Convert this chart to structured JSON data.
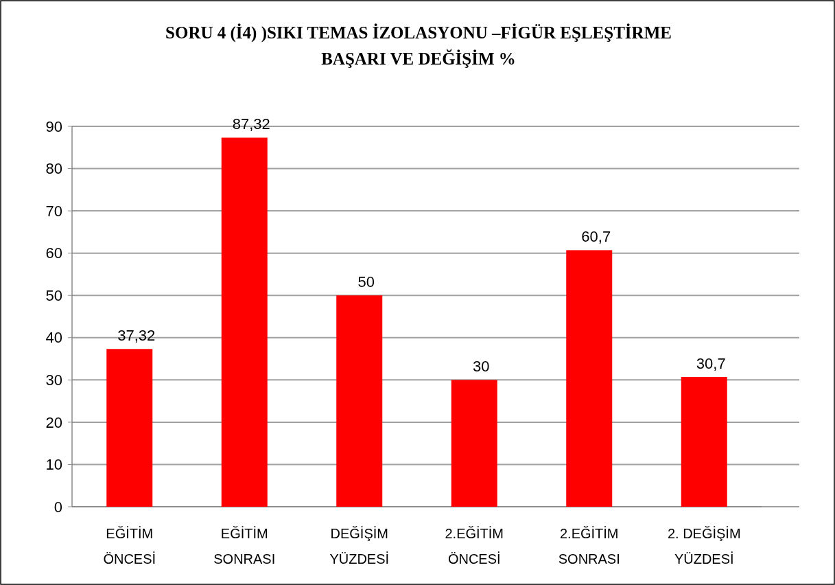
{
  "chart_data": {
    "type": "bar",
    "title": "SORU 4 (İ4) )SIKI TEMAS İZOLASYONU –FİGÜR EŞLEŞTİRME BAŞARI VE DEĞİŞİM %",
    "categories": [
      "EĞİTİM ÖNCESİ",
      "EĞİTİM SONRASI",
      "DEĞİŞİM YÜZDESİ",
      "2.EĞİTİM ÖNCESİ",
      "2.EĞİTİM SONRASI",
      "2. DEĞİŞİM YÜZDESİ"
    ],
    "values": [
      37.32,
      87.32,
      50,
      30,
      60.7,
      30.7
    ],
    "value_labels": [
      "37,32",
      "87,32",
      "50",
      "30",
      "60,7",
      "30,7"
    ],
    "color": "#ff0000",
    "ylim": [
      0,
      90
    ],
    "yticks": [
      0,
      10,
      20,
      30,
      40,
      50,
      60,
      70,
      80,
      90
    ],
    "grid": "y"
  }
}
